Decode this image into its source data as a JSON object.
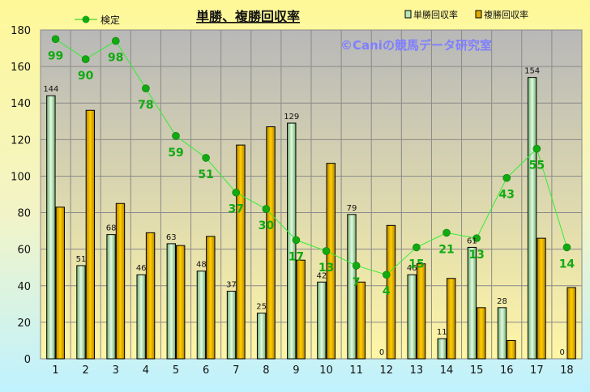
{
  "chart_data": {
    "type": "bar",
    "title": "単勝、複勝回収率",
    "watermark": "©Caniの競馬データ研究室",
    "categories": [
      "1",
      "2",
      "3",
      "4",
      "5",
      "6",
      "7",
      "8",
      "9",
      "10",
      "11",
      "12",
      "13",
      "14",
      "15",
      "16",
      "17",
      "18"
    ],
    "ylim": [
      0,
      180
    ],
    "yticks": [
      "0",
      "20",
      "40",
      "60",
      "80",
      "100",
      "120",
      "140",
      "160",
      "180"
    ],
    "grid": true,
    "legend_position": "top-right",
    "series": [
      {
        "name": "単勝回収率",
        "kind": "bar",
        "color": "#b8e6b8",
        "values": [
          144,
          51,
          68,
          46,
          63,
          48,
          37,
          25,
          129,
          42,
          79,
          0,
          46,
          11,
          61,
          28,
          154,
          0
        ],
        "labels": [
          "144",
          "51",
          "68",
          "46",
          "63",
          "48",
          "37",
          "25",
          "129",
          "42",
          "79",
          "0",
          "46",
          "11",
          "61",
          "28",
          "154",
          "0"
        ]
      },
      {
        "name": "複勝回収率",
        "kind": "bar",
        "color": "#e0aa00",
        "values": [
          83,
          136,
          85,
          69,
          62,
          67,
          117,
          127,
          54,
          107,
          42,
          73,
          52,
          44,
          28,
          10,
          66,
          39
        ]
      },
      {
        "name": "検定",
        "kind": "line",
        "color": "#11aa11",
        "values": [
          175,
          164,
          174,
          148,
          122,
          110,
          91,
          82,
          65,
          59,
          51,
          46,
          61,
          69,
          66,
          99,
          115,
          61
        ],
        "labels": [
          "99",
          "90",
          "98",
          "78",
          "59",
          "51",
          "37",
          "30",
          "17",
          "13",
          "7",
          "4",
          "15",
          "21",
          "13",
          "43",
          "55",
          "14"
        ]
      }
    ]
  }
}
